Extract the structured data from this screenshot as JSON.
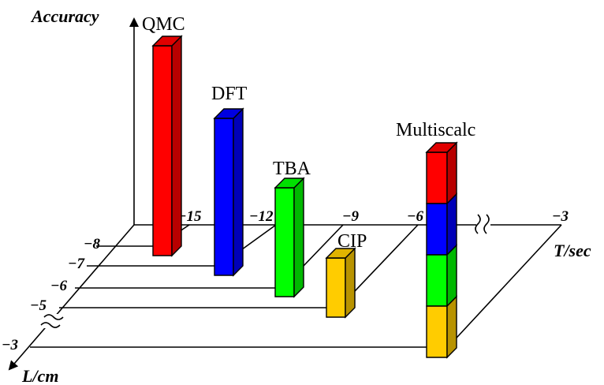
{
  "axes": {
    "y_title": "Accuracy",
    "x_title": "T/sec",
    "z_title": "L/cm",
    "x_ticks": [
      "−15",
      "−12",
      "−9",
      "−6",
      "−3"
    ],
    "z_ticks": [
      "−8",
      "−7",
      "−6",
      "−5",
      "−3"
    ]
  },
  "methods": [
    {
      "label": "QMC",
      "colors": [
        "#ff0000"
      ]
    },
    {
      "label": "DFT",
      "colors": [
        "#0000ff"
      ]
    },
    {
      "label": "TBA",
      "colors": [
        "#00ff00"
      ]
    },
    {
      "label": "CIP",
      "colors": [
        "#ffcc00"
      ]
    },
    {
      "label": "Multiscalc",
      "colors": [
        "#ff0000",
        "#0000ff",
        "#00ff00",
        "#ffcc00"
      ]
    }
  ]
}
